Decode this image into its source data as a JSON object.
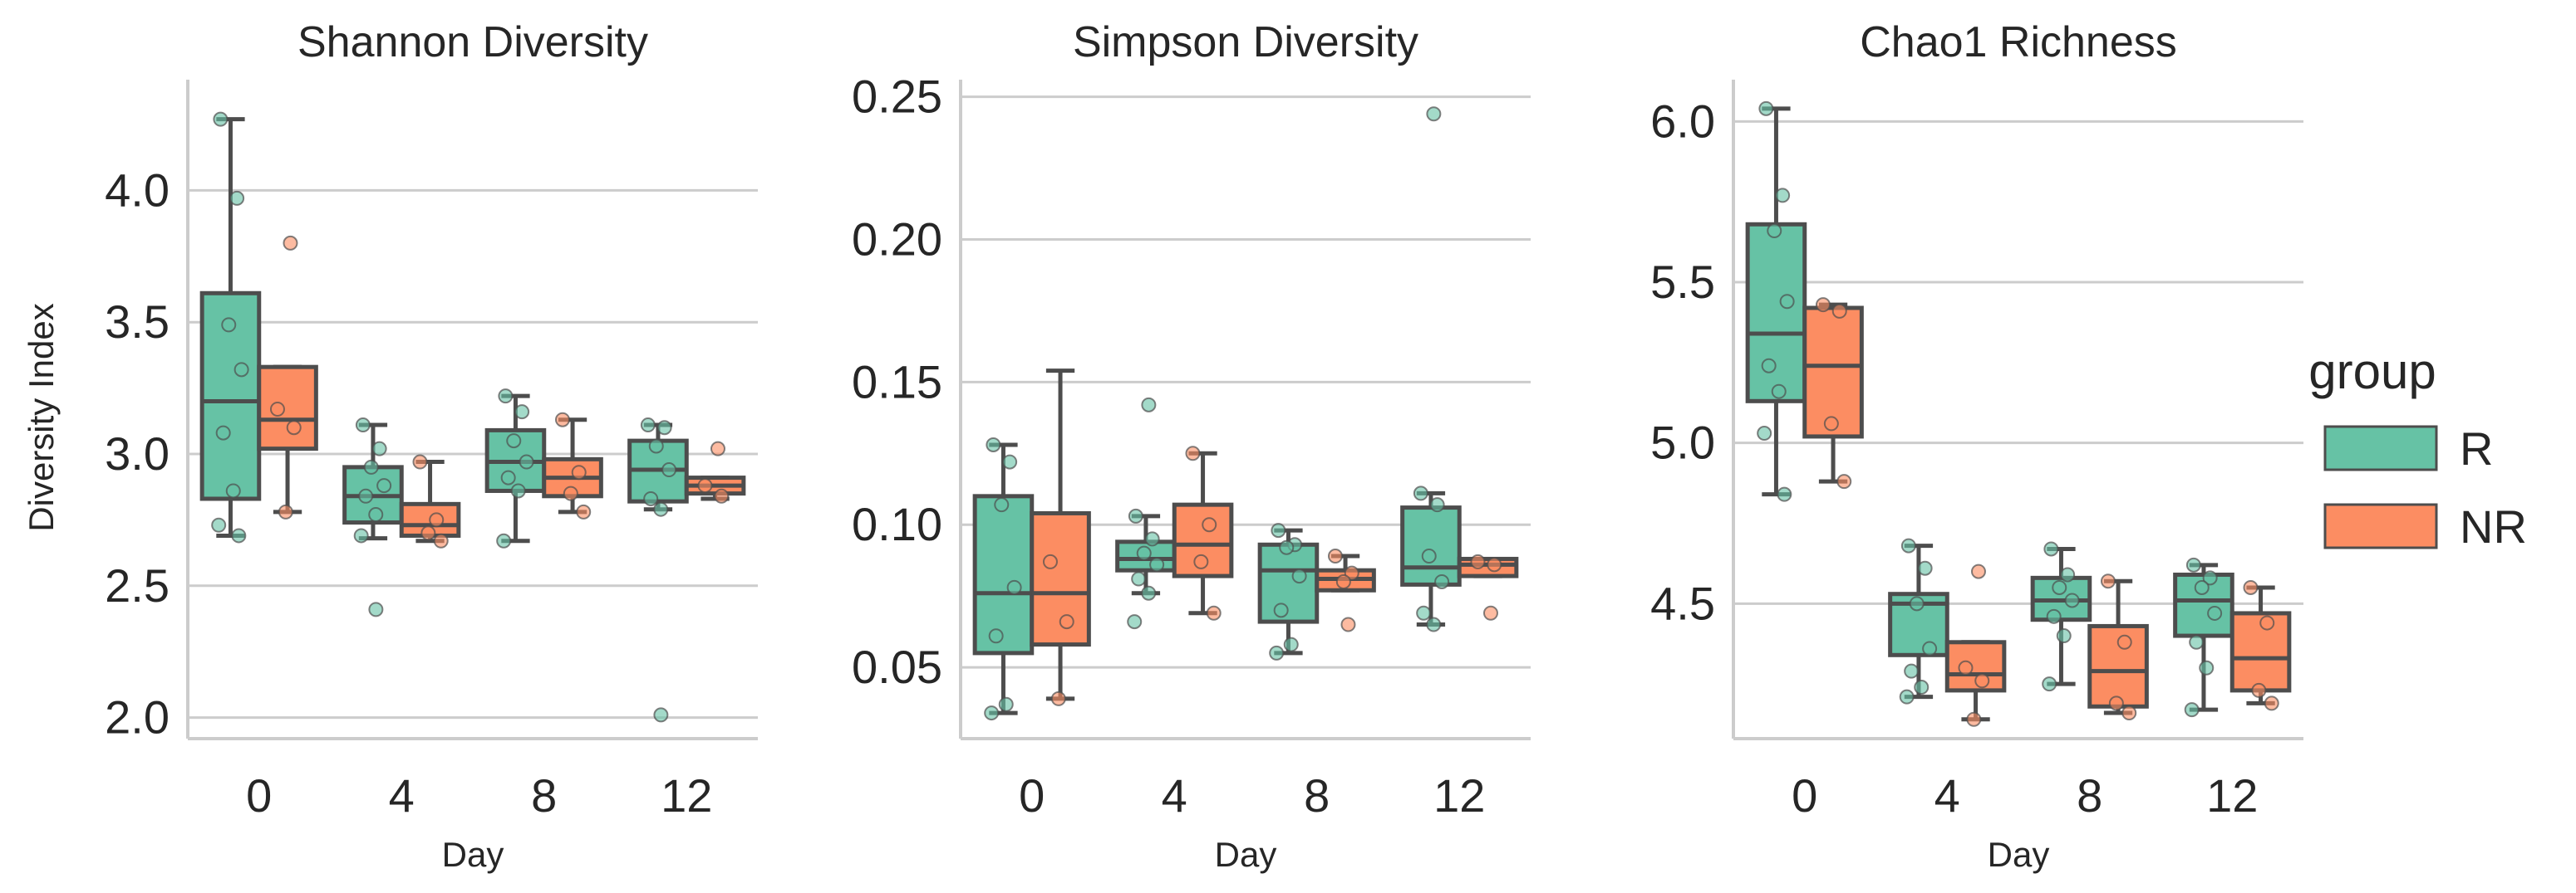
{
  "chart_data": [
    {
      "type": "box",
      "title": "Shannon Diversity",
      "xlabel": "Day",
      "ylabel": "Diversity Index",
      "categories": [
        "0",
        "4",
        "8",
        "12"
      ],
      "ylim": [
        1.92,
        4.42
      ],
      "yticks": [
        "2.0",
        "2.5",
        "3.0",
        "3.5",
        "4.0"
      ],
      "grid": true,
      "series": [
        {
          "name": "R",
          "color": "#66c2a5",
          "boxes": [
            {
              "whislo": 2.69,
              "q1": 2.83,
              "med": 3.2,
              "q3": 3.61,
              "whishi": 4.27,
              "points": [
                4.27,
                3.97,
                3.49,
                3.32,
                3.08,
                2.86,
                2.73,
                2.69
              ],
              "fliers": []
            },
            {
              "whislo": 2.68,
              "q1": 2.74,
              "med": 2.84,
              "q3": 2.95,
              "whishi": 3.11,
              "points": [
                3.11,
                3.02,
                2.95,
                2.88,
                2.84,
                2.77,
                2.69
              ],
              "fliers": [
                2.41
              ]
            },
            {
              "whislo": 2.67,
              "q1": 2.86,
              "med": 2.97,
              "q3": 3.09,
              "whishi": 3.22,
              "points": [
                3.22,
                3.16,
                3.05,
                2.97,
                2.91,
                2.86,
                2.67
              ],
              "fliers": []
            },
            {
              "whislo": 2.79,
              "q1": 2.82,
              "med": 2.94,
              "q3": 3.05,
              "whishi": 3.11,
              "points": [
                3.11,
                3.1,
                3.03,
                2.94,
                2.83,
                2.79
              ],
              "fliers": [
                2.01
              ]
            }
          ]
        },
        {
          "name": "NR",
          "color": "#fc8d62",
          "boxes": [
            {
              "whislo": 2.78,
              "q1": 3.02,
              "med": 3.13,
              "q3": 3.33,
              "whishi": 3.33,
              "points": [
                3.17,
                3.1,
                2.78
              ],
              "fliers": [
                3.8
              ]
            },
            {
              "whislo": 2.67,
              "q1": 2.69,
              "med": 2.73,
              "q3": 2.81,
              "whishi": 2.97,
              "points": [
                2.97,
                2.75,
                2.7,
                2.67
              ],
              "fliers": []
            },
            {
              "whislo": 2.78,
              "q1": 2.84,
              "med": 2.91,
              "q3": 2.98,
              "whishi": 3.13,
              "points": [
                3.13,
                2.93,
                2.85,
                2.78
              ],
              "fliers": []
            },
            {
              "whislo": 2.83,
              "q1": 2.85,
              "med": 2.88,
              "q3": 2.91,
              "whishi": 2.91,
              "points": [
                2.88,
                2.84
              ],
              "fliers": [
                3.02
              ]
            }
          ]
        }
      ]
    },
    {
      "type": "box",
      "title": "Simpson Diversity",
      "xlabel": "Day",
      "ylabel": "",
      "categories": [
        "0",
        "4",
        "8",
        "12"
      ],
      "ylim": [
        0.025,
        0.256
      ],
      "yticks": [
        "0.05",
        "0.10",
        "0.15",
        "0.20",
        "0.25"
      ],
      "grid": true,
      "series": [
        {
          "name": "R",
          "color": "#66c2a5",
          "boxes": [
            {
              "whislo": 0.034,
              "q1": 0.055,
              "med": 0.076,
              "q3": 0.11,
              "whishi": 0.128,
              "points": [
                0.128,
                0.122,
                0.107,
                0.078,
                0.061,
                0.037,
                0.034
              ],
              "fliers": []
            },
            {
              "whislo": 0.076,
              "q1": 0.084,
              "med": 0.088,
              "q3": 0.094,
              "whishi": 0.103,
              "points": [
                0.103,
                0.095,
                0.09,
                0.086,
                0.081,
                0.076
              ],
              "fliers": [
                0.142,
                0.066
              ]
            },
            {
              "whislo": 0.055,
              "q1": 0.066,
              "med": 0.084,
              "q3": 0.093,
              "whishi": 0.098,
              "points": [
                0.098,
                0.093,
                0.092,
                0.082,
                0.07,
                0.058,
                0.055
              ],
              "fliers": []
            },
            {
              "whislo": 0.065,
              "q1": 0.079,
              "med": 0.085,
              "q3": 0.106,
              "whishi": 0.111,
              "points": [
                0.111,
                0.107,
                0.089,
                0.08,
                0.069,
                0.065
              ],
              "fliers": [
                0.244
              ]
            }
          ]
        },
        {
          "name": "NR",
          "color": "#fc8d62",
          "boxes": [
            {
              "whislo": 0.039,
              "q1": 0.058,
              "med": 0.076,
              "q3": 0.104,
              "whishi": 0.154,
              "points": [
                0.087,
                0.066,
                0.039
              ],
              "fliers": []
            },
            {
              "whislo": 0.069,
              "q1": 0.082,
              "med": 0.093,
              "q3": 0.107,
              "whishi": 0.125,
              "points": [
                0.125,
                0.1,
                0.087,
                0.069
              ],
              "fliers": []
            },
            {
              "whislo": 0.077,
              "q1": 0.077,
              "med": 0.081,
              "q3": 0.084,
              "whishi": 0.089,
              "points": [
                0.089,
                0.083,
                0.08
              ],
              "fliers": [
                0.065
              ]
            },
            {
              "whislo": 0.082,
              "q1": 0.082,
              "med": 0.086,
              "q3": 0.088,
              "whishi": 0.088,
              "points": [
                0.087,
                0.086
              ],
              "fliers": [
                0.069
              ]
            }
          ]
        }
      ]
    },
    {
      "type": "box",
      "title": "Chao1 Richness",
      "xlabel": "Day",
      "ylabel": "",
      "categories": [
        "0",
        "4",
        "8",
        "12"
      ],
      "ylim": [
        4.08,
        6.13
      ],
      "yticks": [
        "4.5",
        "5.0",
        "5.5",
        "6.0"
      ],
      "grid": true,
      "series": [
        {
          "name": "R",
          "color": "#66c2a5",
          "boxes": [
            {
              "whislo": 4.84,
              "q1": 5.13,
              "med": 5.34,
              "q3": 5.68,
              "whishi": 6.04,
              "points": [
                6.04,
                5.77,
                5.66,
                5.44,
                5.24,
                5.16,
                5.03,
                4.84
              ],
              "fliers": []
            },
            {
              "whislo": 4.21,
              "q1": 4.34,
              "med": 4.5,
              "q3": 4.53,
              "whishi": 4.68,
              "points": [
                4.68,
                4.61,
                4.5,
                4.36,
                4.29,
                4.24,
                4.21
              ],
              "fliers": []
            },
            {
              "whislo": 4.25,
              "q1": 4.45,
              "med": 4.51,
              "q3": 4.58,
              "whishi": 4.67,
              "points": [
                4.67,
                4.59,
                4.55,
                4.51,
                4.46,
                4.4,
                4.25
              ],
              "fliers": []
            },
            {
              "whislo": 4.17,
              "q1": 4.4,
              "med": 4.51,
              "q3": 4.59,
              "whishi": 4.62,
              "points": [
                4.62,
                4.58,
                4.55,
                4.47,
                4.38,
                4.3,
                4.17
              ],
              "fliers": []
            }
          ]
        },
        {
          "name": "NR",
          "color": "#fc8d62",
          "boxes": [
            {
              "whislo": 4.88,
              "q1": 5.02,
              "med": 5.24,
              "q3": 5.42,
              "whishi": 5.43,
              "points": [
                5.43,
                5.41,
                5.06,
                4.88
              ],
              "fliers": []
            },
            {
              "whislo": 4.14,
              "q1": 4.23,
              "med": 4.28,
              "q3": 4.38,
              "whishi": 4.38,
              "points": [
                4.3,
                4.26,
                4.14
              ],
              "fliers": [
                4.6
              ]
            },
            {
              "whislo": 4.16,
              "q1": 4.18,
              "med": 4.29,
              "q3": 4.43,
              "whishi": 4.57,
              "points": [
                4.57,
                4.38,
                4.19,
                4.16
              ],
              "fliers": []
            },
            {
              "whislo": 4.19,
              "q1": 4.23,
              "med": 4.33,
              "q3": 4.47,
              "whishi": 4.55,
              "points": [
                4.55,
                4.44,
                4.23,
                4.19
              ],
              "fliers": []
            }
          ]
        }
      ]
    }
  ],
  "legend": {
    "title": "group",
    "items": [
      {
        "label": "R",
        "color": "#66c2a5"
      },
      {
        "label": "NR",
        "color": "#fc8d62"
      }
    ]
  }
}
